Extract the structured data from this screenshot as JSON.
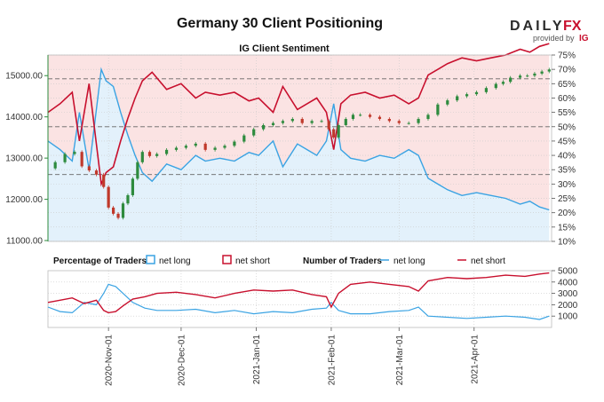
{
  "brand": {
    "daily": "DAILY",
    "fx": "FX",
    "provided_by": "provided by",
    "ig": "IG"
  },
  "chart_data": {
    "type": "candlestick+line",
    "title": "Germany 30 Client Positioning",
    "subtitle": "IG Client Sentiment",
    "x_tick_labels": [
      "2020-Nov-01",
      "2020-Dec-01",
      "2021-Jan-01",
      "2021-Feb-01",
      "2021-Mar-01",
      "2021-Apr-01"
    ],
    "price_axis": {
      "ticks": [
        11000,
        12000,
        13000,
        14000,
        15000
      ],
      "tick_labels": [
        "11000.00",
        "12000.00",
        "13000.00",
        "14000.00",
        "15000.00"
      ],
      "range": [
        10980,
        15500
      ]
    },
    "percent_axis": {
      "ticks": [
        10,
        15,
        20,
        25,
        30,
        35,
        40,
        45,
        50,
        55,
        60,
        65,
        70,
        75
      ],
      "tick_labels": [
        "10%",
        "15%",
        "20%",
        "25%",
        "30%",
        "35%",
        "40%",
        "45%",
        "50%",
        "55%",
        "60%",
        "65%",
        "70%",
        "75%"
      ],
      "range": [
        10,
        75
      ],
      "reference_lines": [
        33.3,
        50,
        66.7
      ]
    },
    "traders_axis": {
      "ticks": [
        1000,
        2000,
        3000,
        4000,
        5000
      ],
      "tick_labels": [
        "1000",
        "2000",
        "3000",
        "4000",
        "5000"
      ],
      "range": [
        0,
        5000
      ]
    },
    "legend": {
      "pct_title": "Percentage of Traders",
      "net_long": "net long",
      "net_short": "net short",
      "num_title": "Number of Traders"
    },
    "colors": {
      "long": "#3aa3e3",
      "short": "#c8102e",
      "long_fill": "#e3f1fb",
      "short_fill": "#fbe3e3",
      "up_candle": "#2e8b3e",
      "down_candle": "#c0392b"
    },
    "x_range_days": [
      -25,
      183
    ],
    "price_series": [
      {
        "d": -25,
        "c": 12750
      },
      {
        "d": -22,
        "c": 12900
      },
      {
        "d": -18,
        "c": 13100
      },
      {
        "d": -14,
        "c": 13150
      },
      {
        "d": -11,
        "c": 12800
      },
      {
        "d": -8,
        "c": 12700
      },
      {
        "d": -5,
        "c": 12600
      },
      {
        "d": -2,
        "c": 12300
      },
      {
        "d": 0,
        "c": 11800
      },
      {
        "d": 2,
        "c": 11650
      },
      {
        "d": 4,
        "c": 11550
      },
      {
        "d": 6,
        "c": 11900
      },
      {
        "d": 8,
        "c": 12100
      },
      {
        "d": 10,
        "c": 12500
      },
      {
        "d": 12,
        "c": 12900
      },
      {
        "d": 14,
        "c": 13150
      },
      {
        "d": 17,
        "c": 13050
      },
      {
        "d": 20,
        "c": 13100
      },
      {
        "d": 24,
        "c": 13200
      },
      {
        "d": 28,
        "c": 13250
      },
      {
        "d": 32,
        "c": 13300
      },
      {
        "d": 36,
        "c": 13350
      },
      {
        "d": 40,
        "c": 13200
      },
      {
        "d": 44,
        "c": 13250
      },
      {
        "d": 48,
        "c": 13300
      },
      {
        "d": 52,
        "c": 13400
      },
      {
        "d": 56,
        "c": 13550
      },
      {
        "d": 60,
        "c": 13700
      },
      {
        "d": 64,
        "c": 13800
      },
      {
        "d": 68,
        "c": 13850
      },
      {
        "d": 72,
        "c": 13900
      },
      {
        "d": 76,
        "c": 13950
      },
      {
        "d": 80,
        "c": 13850
      },
      {
        "d": 84,
        "c": 13900
      },
      {
        "d": 88,
        "c": 13900
      },
      {
        "d": 91,
        "c": 13700
      },
      {
        "d": 93,
        "c": 13500
      },
      {
        "d": 95,
        "c": 13800
      },
      {
        "d": 98,
        "c": 13950
      },
      {
        "d": 101,
        "c": 14050
      },
      {
        "d": 104,
        "c": 14050
      },
      {
        "d": 108,
        "c": 14000
      },
      {
        "d": 112,
        "c": 13950
      },
      {
        "d": 116,
        "c": 13900
      },
      {
        "d": 120,
        "c": 13850
      },
      {
        "d": 124,
        "c": 13850
      },
      {
        "d": 128,
        "c": 13950
      },
      {
        "d": 132,
        "c": 14050
      },
      {
        "d": 136,
        "c": 14300
      },
      {
        "d": 140,
        "c": 14400
      },
      {
        "d": 144,
        "c": 14500
      },
      {
        "d": 148,
        "c": 14550
      },
      {
        "d": 152,
        "c": 14600
      },
      {
        "d": 156,
        "c": 14700
      },
      {
        "d": 160,
        "c": 14800
      },
      {
        "d": 163,
        "c": 14850
      },
      {
        "d": 166,
        "c": 14950
      },
      {
        "d": 170,
        "c": 15000
      },
      {
        "d": 173,
        "c": 15000
      },
      {
        "d": 176,
        "c": 15050
      },
      {
        "d": 179,
        "c": 15100
      },
      {
        "d": 182,
        "c": 15150
      }
    ],
    "net_long_pct_series": [
      {
        "d": -25,
        "v": 45
      },
      {
        "d": -20,
        "v": 42
      },
      {
        "d": -15,
        "v": 38
      },
      {
        "d": -12,
        "v": 55
      },
      {
        "d": -8,
        "v": 35
      },
      {
        "d": -5,
        "v": 56
      },
      {
        "d": -3,
        "v": 70
      },
      {
        "d": -1,
        "v": 66
      },
      {
        "d": 2,
        "v": 64
      },
      {
        "d": 5,
        "v": 55
      },
      {
        "d": 8,
        "v": 47
      },
      {
        "d": 11,
        "v": 40
      },
      {
        "d": 14,
        "v": 34
      },
      {
        "d": 18,
        "v": 31
      },
      {
        "d": 24,
        "v": 37
      },
      {
        "d": 30,
        "v": 35
      },
      {
        "d": 36,
        "v": 40
      },
      {
        "d": 40,
        "v": 38
      },
      {
        "d": 46,
        "v": 39
      },
      {
        "d": 52,
        "v": 38
      },
      {
        "d": 58,
        "v": 41
      },
      {
        "d": 62,
        "v": 40
      },
      {
        "d": 68,
        "v": 45
      },
      {
        "d": 72,
        "v": 36
      },
      {
        "d": 78,
        "v": 44
      },
      {
        "d": 82,
        "v": 42
      },
      {
        "d": 86,
        "v": 40
      },
      {
        "d": 90,
        "v": 45
      },
      {
        "d": 93,
        "v": 58
      },
      {
        "d": 96,
        "v": 42
      },
      {
        "d": 100,
        "v": 39
      },
      {
        "d": 106,
        "v": 38
      },
      {
        "d": 112,
        "v": 40
      },
      {
        "d": 118,
        "v": 39
      },
      {
        "d": 124,
        "v": 42
      },
      {
        "d": 128,
        "v": 40
      },
      {
        "d": 132,
        "v": 32
      },
      {
        "d": 136,
        "v": 30
      },
      {
        "d": 140,
        "v": 28
      },
      {
        "d": 146,
        "v": 26
      },
      {
        "d": 152,
        "v": 27
      },
      {
        "d": 158,
        "v": 26
      },
      {
        "d": 164,
        "v": 25
      },
      {
        "d": 170,
        "v": 23
      },
      {
        "d": 174,
        "v": 24
      },
      {
        "d": 178,
        "v": 22
      },
      {
        "d": 182,
        "v": 21
      }
    ],
    "net_short_pct_series": [
      {
        "d": -25,
        "v": 55
      },
      {
        "d": -20,
        "v": 58
      },
      {
        "d": -15,
        "v": 62
      },
      {
        "d": -12,
        "v": 45
      },
      {
        "d": -8,
        "v": 65
      },
      {
        "d": -5,
        "v": 44
      },
      {
        "d": -3,
        "v": 30
      },
      {
        "d": -1,
        "v": 34
      },
      {
        "d": 2,
        "v": 36
      },
      {
        "d": 5,
        "v": 45
      },
      {
        "d": 8,
        "v": 53
      },
      {
        "d": 11,
        "v": 60
      },
      {
        "d": 14,
        "v": 66
      },
      {
        "d": 18,
        "v": 69
      },
      {
        "d": 24,
        "v": 63
      },
      {
        "d": 30,
        "v": 65
      },
      {
        "d": 36,
        "v": 60
      },
      {
        "d": 40,
        "v": 62
      },
      {
        "d": 46,
        "v": 61
      },
      {
        "d": 52,
        "v": 62
      },
      {
        "d": 58,
        "v": 59
      },
      {
        "d": 62,
        "v": 60
      },
      {
        "d": 68,
        "v": 55
      },
      {
        "d": 72,
        "v": 64
      },
      {
        "d": 78,
        "v": 56
      },
      {
        "d": 82,
        "v": 58
      },
      {
        "d": 86,
        "v": 60
      },
      {
        "d": 90,
        "v": 55
      },
      {
        "d": 93,
        "v": 42
      },
      {
        "d": 96,
        "v": 58
      },
      {
        "d": 100,
        "v": 61
      },
      {
        "d": 106,
        "v": 62
      },
      {
        "d": 112,
        "v": 60
      },
      {
        "d": 118,
        "v": 61
      },
      {
        "d": 124,
        "v": 58
      },
      {
        "d": 128,
        "v": 60
      },
      {
        "d": 132,
        "v": 68
      },
      {
        "d": 136,
        "v": 70
      },
      {
        "d": 140,
        "v": 72
      },
      {
        "d": 146,
        "v": 74
      },
      {
        "d": 152,
        "v": 73
      },
      {
        "d": 158,
        "v": 74
      },
      {
        "d": 164,
        "v": 75
      },
      {
        "d": 170,
        "v": 77
      },
      {
        "d": 174,
        "v": 76
      },
      {
        "d": 178,
        "v": 78
      },
      {
        "d": 182,
        "v": 79
      }
    ],
    "net_long_traders_series": [
      {
        "d": -25,
        "v": 1800
      },
      {
        "d": -20,
        "v": 1400
      },
      {
        "d": -15,
        "v": 1300
      },
      {
        "d": -10,
        "v": 2200
      },
      {
        "d": -5,
        "v": 2000
      },
      {
        "d": -2,
        "v": 3000
      },
      {
        "d": 0,
        "v": 3800
      },
      {
        "d": 3,
        "v": 3600
      },
      {
        "d": 6,
        "v": 3000
      },
      {
        "d": 10,
        "v": 2200
      },
      {
        "d": 15,
        "v": 1700
      },
      {
        "d": 20,
        "v": 1500
      },
      {
        "d": 28,
        "v": 1500
      },
      {
        "d": 36,
        "v": 1600
      },
      {
        "d": 44,
        "v": 1300
      },
      {
        "d": 52,
        "v": 1500
      },
      {
        "d": 60,
        "v": 1200
      },
      {
        "d": 68,
        "v": 1400
      },
      {
        "d": 76,
        "v": 1300
      },
      {
        "d": 84,
        "v": 1600
      },
      {
        "d": 90,
        "v": 1700
      },
      {
        "d": 92,
        "v": 2200
      },
      {
        "d": 95,
        "v": 1500
      },
      {
        "d": 100,
        "v": 1200
      },
      {
        "d": 108,
        "v": 1200
      },
      {
        "d": 116,
        "v": 1400
      },
      {
        "d": 124,
        "v": 1500
      },
      {
        "d": 128,
        "v": 1800
      },
      {
        "d": 132,
        "v": 1000
      },
      {
        "d": 140,
        "v": 900
      },
      {
        "d": 148,
        "v": 800
      },
      {
        "d": 156,
        "v": 900
      },
      {
        "d": 164,
        "v": 1000
      },
      {
        "d": 172,
        "v": 900
      },
      {
        "d": 178,
        "v": 700
      },
      {
        "d": 182,
        "v": 1000
      }
    ],
    "net_short_traders_series": [
      {
        "d": -25,
        "v": 2200
      },
      {
        "d": -20,
        "v": 2400
      },
      {
        "d": -15,
        "v": 2600
      },
      {
        "d": -10,
        "v": 2100
      },
      {
        "d": -5,
        "v": 2400
      },
      {
        "d": -2,
        "v": 1500
      },
      {
        "d": 0,
        "v": 1300
      },
      {
        "d": 3,
        "v": 1400
      },
      {
        "d": 6,
        "v": 1900
      },
      {
        "d": 10,
        "v": 2500
      },
      {
        "d": 15,
        "v": 2700
      },
      {
        "d": 20,
        "v": 3000
      },
      {
        "d": 28,
        "v": 3100
      },
      {
        "d": 36,
        "v": 2900
      },
      {
        "d": 44,
        "v": 2600
      },
      {
        "d": 52,
        "v": 3000
      },
      {
        "d": 60,
        "v": 3300
      },
      {
        "d": 68,
        "v": 3200
      },
      {
        "d": 76,
        "v": 3300
      },
      {
        "d": 84,
        "v": 2900
      },
      {
        "d": 90,
        "v": 2700
      },
      {
        "d": 92,
        "v": 1800
      },
      {
        "d": 95,
        "v": 3000
      },
      {
        "d": 100,
        "v": 3800
      },
      {
        "d": 108,
        "v": 4000
      },
      {
        "d": 116,
        "v": 3800
      },
      {
        "d": 124,
        "v": 3600
      },
      {
        "d": 128,
        "v": 3200
      },
      {
        "d": 132,
        "v": 4100
      },
      {
        "d": 140,
        "v": 4400
      },
      {
        "d": 148,
        "v": 4300
      },
      {
        "d": 156,
        "v": 4400
      },
      {
        "d": 164,
        "v": 4600
      },
      {
        "d": 172,
        "v": 4500
      },
      {
        "d": 178,
        "v": 4700
      },
      {
        "d": 182,
        "v": 4800
      }
    ]
  }
}
